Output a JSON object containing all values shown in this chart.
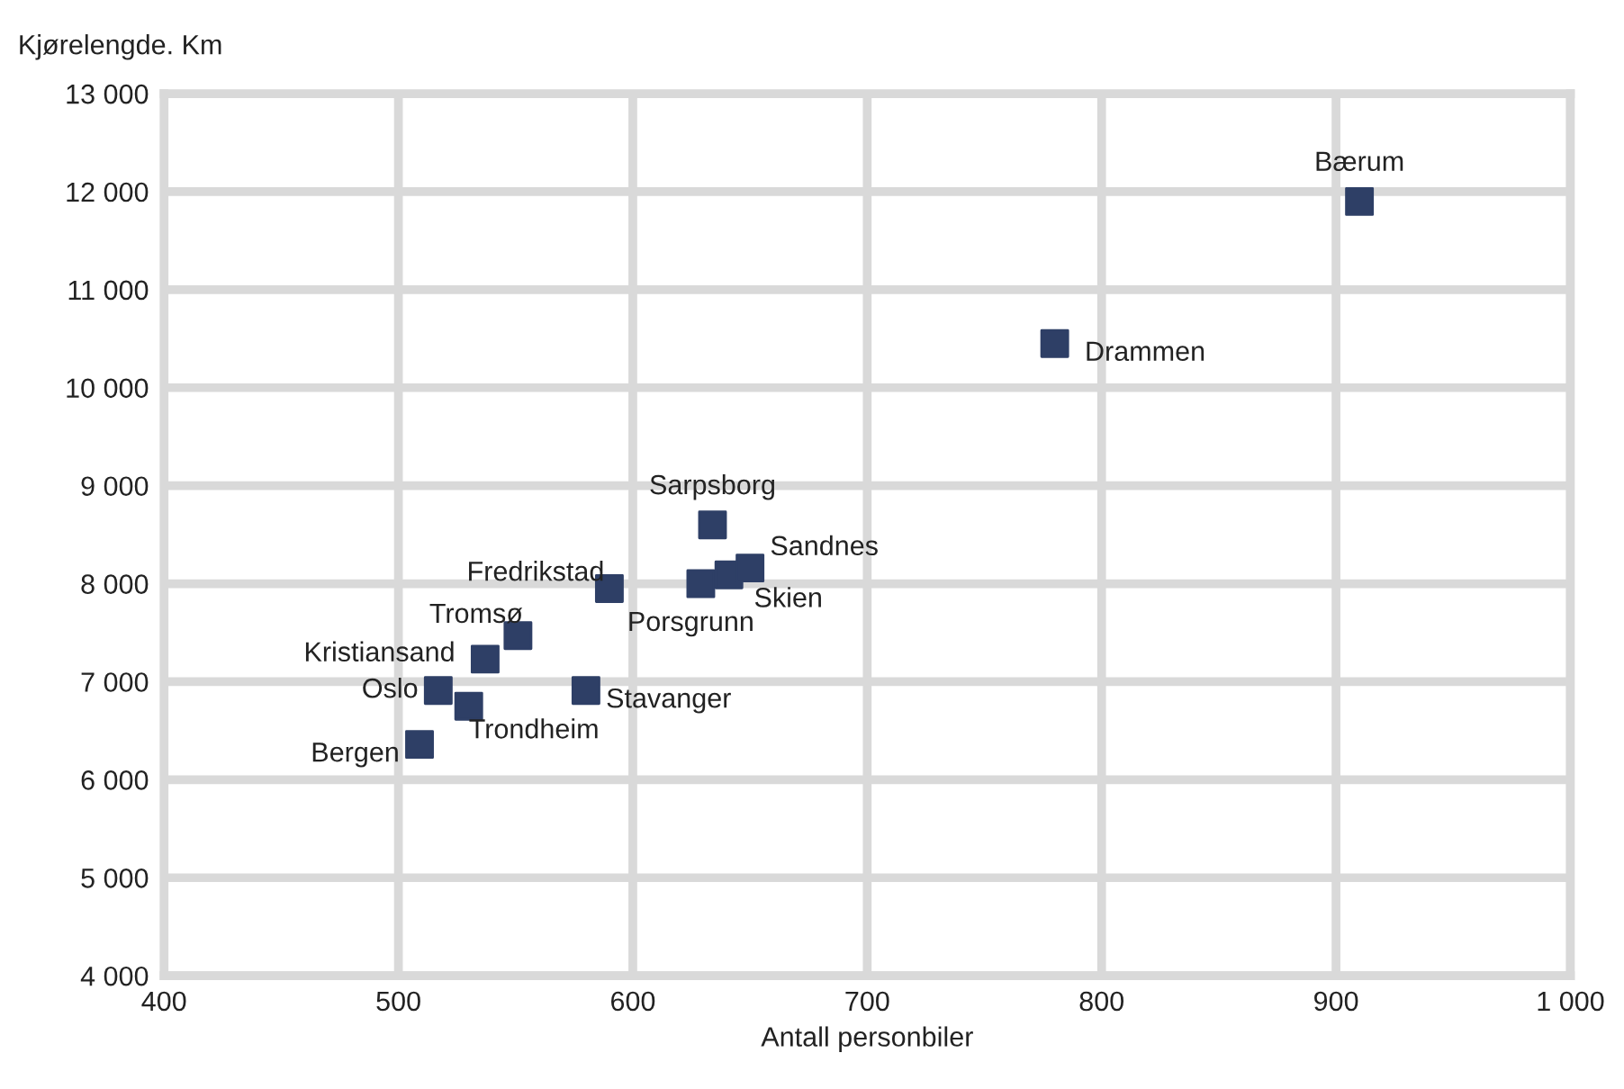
{
  "chart_data": {
    "type": "scatter",
    "ylabel": "Kjørelengde. Km",
    "xlabel": "Antall personbiler",
    "marker": "square",
    "grid": true,
    "x": [
      910,
      780,
      634,
      590,
      629,
      641,
      650,
      551,
      537,
      517,
      530,
      580,
      509
    ],
    "series": [
      {
        "color": "#2e3f66",
        "values": [
          11900,
          10450,
          8600,
          7950,
          8000,
          8090,
          8160,
          7470,
          7230,
          6910,
          6750,
          6910,
          6360
        ]
      }
    ],
    "annotations": [
      {
        "text": "Bærum",
        "x": 910,
        "y": 11900
      },
      {
        "text": "Drammen",
        "x": 780,
        "y": 10450
      },
      {
        "text": "Sarpsborg",
        "x": 634,
        "y": 8600
      },
      {
        "text": "Fredrikstad",
        "x": 590,
        "y": 7950
      },
      {
        "text": "Porsgrunn",
        "x": 629,
        "y": 8000
      },
      {
        "text": "Skien",
        "x": 641,
        "y": 8090
      },
      {
        "text": "Sandnes",
        "x": 650,
        "y": 8160
      },
      {
        "text": "Tromsø",
        "x": 551,
        "y": 7470
      },
      {
        "text": "Kristiansand",
        "x": 537,
        "y": 7230
      },
      {
        "text": "Oslo",
        "x": 517,
        "y": 6910
      },
      {
        "text": "Trondheim",
        "x": 530,
        "y": 6750
      },
      {
        "text": "Stavanger",
        "x": 580,
        "y": 6910
      },
      {
        "text": "Bergen",
        "x": 509,
        "y": 6360
      }
    ],
    "xlim": [
      400,
      1000
    ],
    "xticks": [
      400,
      500,
      600,
      700,
      800,
      900,
      {
        "value": 1000,
        "label": "1 000"
      }
    ],
    "ylim": [
      4000,
      13000
    ],
    "yticks": [
      {
        "value": 4000,
        "label": "4 000"
      },
      {
        "value": 5000,
        "label": "5 000"
      },
      {
        "value": 6000,
        "label": "6 000"
      },
      {
        "value": 7000,
        "label": "7 000"
      },
      {
        "value": 8000,
        "label": "8 000"
      },
      {
        "value": 9000,
        "label": "9 000"
      },
      {
        "value": 10000,
        "label": "10 000"
      },
      {
        "value": 11000,
        "label": "11 000"
      },
      {
        "value": 12000,
        "label": "12 000"
      },
      {
        "value": 13000,
        "label": "13 000"
      }
    ]
  }
}
